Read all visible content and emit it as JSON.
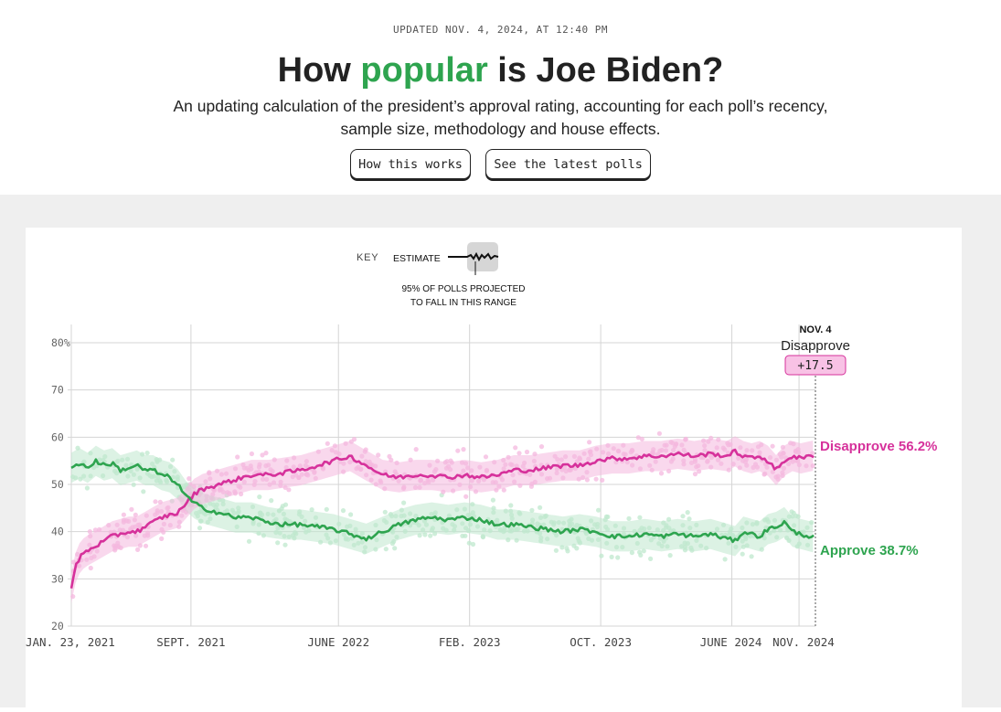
{
  "header": {
    "updated": "UPDATED NOV. 4, 2024, AT 12:40 PM",
    "title_before": "How ",
    "title_highlight": "popular",
    "title_after": " is Joe Biden?",
    "subtitle_line1": "An updating calculation of the president’s approval rating, accounting for each poll’s recency,",
    "subtitle_line2": "sample size, methodology and house effects.",
    "button_how": "How this works",
    "button_polls": "See the latest polls"
  },
  "key": {
    "label": "KEY",
    "estimate": "ESTIMATE",
    "range_line1": "95% OF POLLS PROJECTED",
    "range_line2": "TO FALL IN THIS RANGE"
  },
  "colors": {
    "approve": "#2ea44f",
    "disapprove": "#d6319b",
    "approve_light": "#bfe8cd",
    "disapprove_light": "#f4b8df"
  },
  "chart_data": {
    "type": "line",
    "title": "How popular is Joe Biden?",
    "ylim": [
      20,
      80
    ],
    "yticks": [
      20,
      30,
      40,
      50,
      60,
      70,
      80
    ],
    "ytick_labels": [
      "20",
      "30",
      "40",
      "50",
      "60",
      "70",
      "80%"
    ],
    "xlim_months": [
      0,
      45.4
    ],
    "xticks": [
      {
        "m": 0,
        "label": "JAN. 23, 2021"
      },
      {
        "m": 7.3,
        "label": "SEPT. 2021"
      },
      {
        "m": 16.3,
        "label": "JUNE 2022"
      },
      {
        "m": 24.3,
        "label": "FEB. 2023"
      },
      {
        "m": 32.3,
        "label": "OCT. 2023"
      },
      {
        "m": 40.3,
        "label": "JUNE 2024"
      },
      {
        "m": 44.4,
        "label": "NOV. 2024"
      }
    ],
    "series": [
      {
        "name": "Approve",
        "final_label": "Approve 38.7%",
        "x": [
          0,
          0.5,
          1,
          1.5,
          2,
          2.5,
          3,
          3.5,
          4,
          4.5,
          5,
          5.5,
          6,
          6.5,
          7,
          7.5,
          8,
          9,
          10,
          11,
          12,
          13,
          14,
          15,
          16,
          17,
          18,
          19,
          20,
          21,
          22,
          23,
          24,
          25,
          26,
          27,
          28,
          29,
          30,
          31,
          32,
          33,
          34,
          35,
          36,
          37,
          38,
          39,
          40,
          40.5,
          41,
          41.5,
          42,
          42.5,
          43,
          43.5,
          44,
          44.5,
          45.4
        ],
        "values": [
          53.5,
          54.5,
          53.5,
          55,
          54,
          54.5,
          53,
          53.5,
          54,
          53,
          53,
          52,
          51.5,
          50,
          47.5,
          46,
          45,
          44,
          43,
          43,
          42,
          41.5,
          41.5,
          41,
          40.5,
          39.5,
          38.5,
          40,
          41.5,
          42.5,
          43,
          42.5,
          43,
          42.5,
          41.5,
          41.5,
          41,
          40.5,
          40,
          40.5,
          40,
          39,
          39,
          39.5,
          39,
          39.5,
          39,
          39.5,
          38.5,
          38,
          40,
          39.5,
          39,
          40.5,
          41,
          42,
          40,
          39.5,
          38.7
        ]
      },
      {
        "name": "Disapprove",
        "final_label": "Disapprove 56.2%",
        "x": [
          0,
          0.1,
          0.3,
          0.6,
          1,
          1.5,
          2,
          2.5,
          3,
          3.5,
          4,
          4.5,
          5,
          5.5,
          6,
          6.5,
          7,
          7.5,
          8,
          9,
          10,
          11,
          12,
          13,
          14,
          15,
          16,
          16.5,
          17,
          17.5,
          18,
          18.5,
          19,
          20,
          21,
          22,
          23,
          24,
          25,
          26,
          27,
          28,
          29,
          30,
          31,
          32,
          33,
          34,
          35,
          36,
          37,
          38,
          39,
          40,
          40.5,
          41,
          41.5,
          42,
          42.5,
          43,
          43.5,
          44,
          44.5,
          45.4
        ],
        "values": [
          28,
          30,
          33,
          35,
          36,
          37,
          38,
          39,
          39.5,
          40,
          40,
          41,
          42,
          43,
          43.5,
          44,
          46,
          48,
          49,
          50,
          51,
          52,
          52,
          52.5,
          53,
          54,
          55,
          55.5,
          56,
          55,
          54,
          53,
          52,
          51.5,
          52,
          52,
          51.5,
          52,
          51.5,
          52,
          53,
          53,
          53.5,
          54,
          54,
          55,
          55.5,
          55.5,
          56,
          56,
          56.5,
          56,
          56.5,
          56,
          57,
          56,
          55.5,
          56,
          55,
          53,
          55,
          56,
          55.5,
          56.2
        ]
      }
    ],
    "annotation": {
      "date": "NOV. 4",
      "label": "Disapprove",
      "margin": "+17.5"
    }
  }
}
